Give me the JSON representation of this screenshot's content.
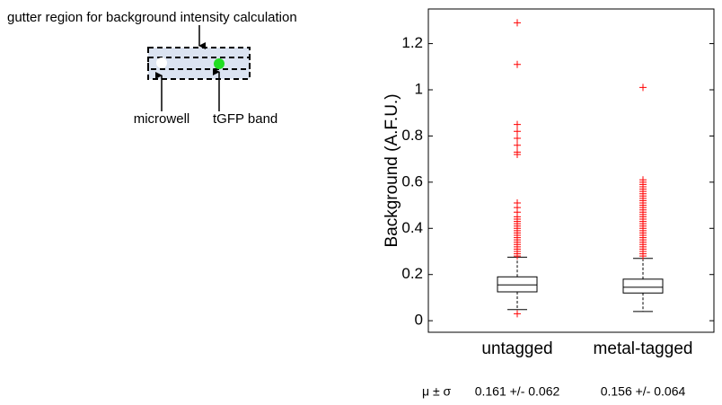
{
  "diagram": {
    "title": "gutter region for background intensity calculation",
    "labels": [
      "microwell",
      "tGFP band"
    ]
  },
  "chart_data": {
    "type": "box",
    "ylabel": "Background (A.F.U.)",
    "categories": [
      "untagged",
      "metal-tagged"
    ],
    "ylim": [
      -0.05,
      1.35
    ],
    "yticks": [
      0,
      0.2,
      0.4,
      0.6,
      0.8,
      1,
      1.2
    ],
    "box_color": "#000000",
    "flier_color": "#ff0000",
    "boxes": [
      {
        "whislo": 0.048,
        "q1": 0.125,
        "med": 0.155,
        "q3": 0.19,
        "whishi": 0.275,
        "fliers": [
          0.03,
          1.29,
          1.11,
          0.85,
          0.82,
          0.79,
          0.76,
          0.73,
          0.72,
          0.51,
          0.49,
          0.47,
          0.45,
          0.44,
          0.43,
          0.42,
          0.41,
          0.4,
          0.39,
          0.38,
          0.37,
          0.36,
          0.35,
          0.34,
          0.33,
          0.32,
          0.31,
          0.3,
          0.29,
          0.28
        ]
      },
      {
        "whislo": 0.04,
        "q1": 0.12,
        "med": 0.145,
        "q3": 0.18,
        "whishi": 0.27,
        "fliers": [
          1.01,
          0.61,
          0.6,
          0.59,
          0.58,
          0.57,
          0.56,
          0.55,
          0.54,
          0.53,
          0.52,
          0.51,
          0.5,
          0.49,
          0.48,
          0.47,
          0.46,
          0.45,
          0.44,
          0.43,
          0.42,
          0.41,
          0.4,
          0.39,
          0.38,
          0.37,
          0.36,
          0.35,
          0.34,
          0.33,
          0.32,
          0.31,
          0.3,
          0.29,
          0.28
        ]
      }
    ],
    "stats": {
      "label": "μ ± σ",
      "values": [
        "0.161 +/- 0.062",
        "0.156 +/- 0.064"
      ]
    }
  }
}
